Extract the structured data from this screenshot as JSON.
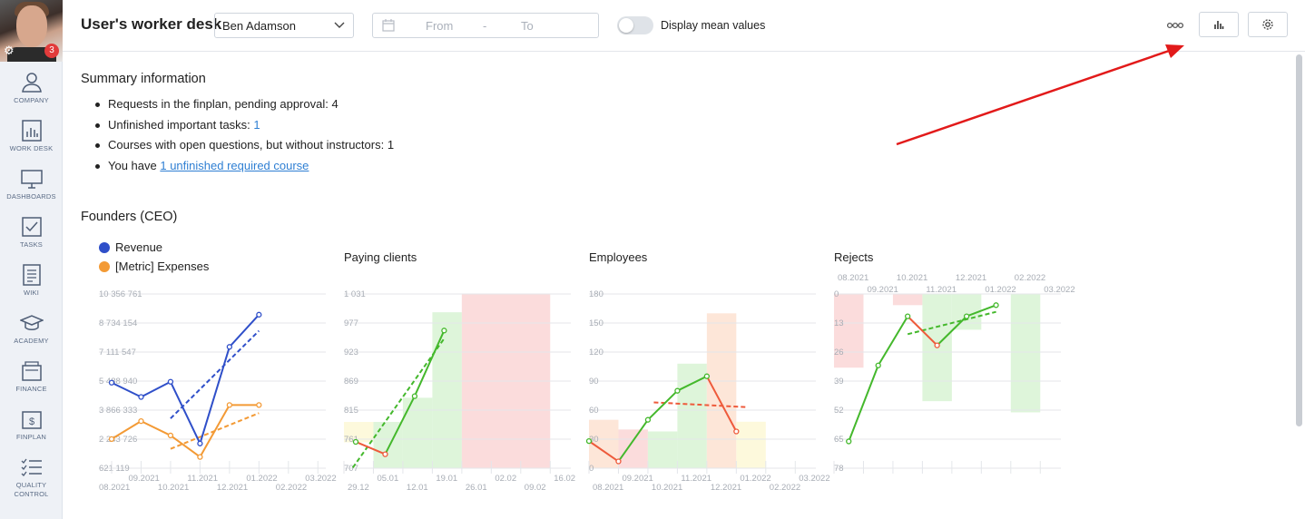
{
  "sidebar": {
    "badge_count": "3",
    "items": [
      {
        "label": "COMPANY",
        "icon": "users-icon"
      },
      {
        "label": "WORK DESK",
        "icon": "bar-chart-icon"
      },
      {
        "label": "DASHBOARDS",
        "icon": "monitor-icon"
      },
      {
        "label": "TASKS",
        "icon": "checkbox-icon"
      },
      {
        "label": "WIKI",
        "icon": "document-icon"
      },
      {
        "label": "ACADEMY",
        "icon": "graduation-cap-icon"
      },
      {
        "label": "FINANCE",
        "icon": "wallet-icon"
      },
      {
        "label": "FINPLAN",
        "icon": "dollar-doc-icon"
      },
      {
        "label": "QUALITY CONTROL",
        "icon": "checklist-icon"
      }
    ]
  },
  "header": {
    "title": "User's worker desk",
    "user_select": "Ben Adamson",
    "date_from_placeholder": "From",
    "date_separator": "-",
    "date_to_placeholder": "To",
    "toggle_label": "Display mean values",
    "toggle_on": false
  },
  "summary": {
    "title": "Summary information",
    "items": {
      "requests": "Requests in the finplan, pending approval: 4",
      "tasks_text": "Unfinished important tasks: ",
      "tasks_link": "1",
      "courses": "Courses with open questions, but without instructors: 1",
      "course_text": "You have ",
      "course_link": "1 unfinished required course"
    }
  },
  "section": {
    "title": "Founders (CEO)"
  },
  "colors": {
    "revenue": "#2f4fc9",
    "expenses": "#f39a35",
    "up": "#44b82c",
    "down": "#ee5a3b",
    "red_zone": "#fbdcdc",
    "green_zone": "#def5da",
    "orange_zone": "#fde6d8",
    "yellow_zone": "#fdf9dc",
    "annotation_arrow": "#e21a1a"
  },
  "chart_data": [
    {
      "type": "line",
      "title": "",
      "legend": [
        "Revenue",
        "[Metric] Expenses"
      ],
      "y_ticks": [
        "10 356 761",
        "8 734 154",
        "7 111 547",
        "5 488 940",
        "3 866 333",
        "2 243 726",
        "621 119"
      ],
      "x_ticks": [
        "08.2021",
        "09.2021",
        "10.2021",
        "11.2021",
        "12.2021",
        "01.2022",
        "02.2022",
        "03.2022"
      ],
      "ylim": [
        621119,
        10356761
      ],
      "series": [
        {
          "name": "Revenue",
          "x": [
            0,
            1,
            2,
            3,
            4,
            5
          ],
          "values": [
            5400000,
            4600000,
            5450000,
            2000000,
            7400000,
            9200000
          ]
        },
        {
          "name": "[Metric] Expenses",
          "x": [
            0,
            1,
            2,
            3,
            4,
            5
          ],
          "values": [
            2250000,
            3250000,
            2450000,
            1250000,
            4150000,
            4150000
          ]
        }
      ],
      "trend": [
        {
          "series": "Revenue",
          "from": [
            2,
            3400000
          ],
          "to": [
            5,
            8300000
          ]
        },
        {
          "series": "[Metric] Expenses",
          "from": [
            2,
            1700000
          ],
          "to": [
            5,
            3700000
          ]
        }
      ]
    },
    {
      "type": "line",
      "title": "Paying clients",
      "y_ticks": [
        "1 031",
        "977",
        "923",
        "869",
        "815",
        "761",
        "707"
      ],
      "x_ticks": [
        "29.12",
        "05.01",
        "12.01",
        "19.01",
        "26.01",
        "02.02",
        "09.02",
        "16.02"
      ],
      "ylim": [
        707,
        1031
      ],
      "series": [
        {
          "name": "",
          "x": [
            0.4,
            1.4,
            2.4,
            3.4
          ],
          "values": [
            756,
            733,
            841,
            963
          ]
        }
      ],
      "trend": [
        {
          "from": [
            0.3,
            708
          ],
          "to": [
            3.4,
            948
          ]
        }
      ],
      "bands": [
        {
          "x0": 0,
          "x1": 1,
          "y0": 755,
          "y1": 793,
          "color": "yellow_zone"
        },
        {
          "x0": 1,
          "x1": 2,
          "y0": 707,
          "y1": 793,
          "color": "green_zone"
        },
        {
          "x0": 2,
          "x1": 3,
          "y0": 707,
          "y1": 838,
          "color": "green_zone"
        },
        {
          "x0": 3,
          "x1": 4,
          "y0": 707,
          "y1": 997,
          "color": "green_zone"
        },
        {
          "x0": 4,
          "x1": 7,
          "y0": 707,
          "y1": 1031,
          "color": "red_zone"
        }
      ]
    },
    {
      "type": "line",
      "title": "Employees",
      "y_ticks": [
        "180",
        "150",
        "120",
        "90",
        "60",
        "30",
        "0"
      ],
      "x_ticks": [
        "08.2021",
        "09.2021",
        "10.2021",
        "11.2021",
        "12.2021",
        "01.2022",
        "02.2022",
        "03.2022"
      ],
      "ylim": [
        0,
        180
      ],
      "series": [
        {
          "name": "",
          "x": [
            0,
            1,
            2,
            3,
            4,
            5
          ],
          "values": [
            28,
            7,
            50,
            80,
            95,
            38
          ]
        }
      ],
      "trend": [
        {
          "from": [
            2.2,
            68
          ],
          "to": [
            5.4,
            63
          ]
        }
      ],
      "bands": [
        {
          "x0": 0,
          "x1": 1,
          "y0": 0,
          "y1": 50,
          "color": "orange_zone"
        },
        {
          "x0": 1,
          "x1": 2,
          "y0": 0,
          "y1": 40,
          "color": "red_zone"
        },
        {
          "x0": 2,
          "x1": 3,
          "y0": 0,
          "y1": 38,
          "color": "green_zone"
        },
        {
          "x0": 3,
          "x1": 4,
          "y0": 0,
          "y1": 108,
          "color": "green_zone"
        },
        {
          "x0": 4,
          "x1": 5,
          "y0": 0,
          "y1": 160,
          "color": "orange_zone"
        },
        {
          "x0": 5,
          "x1": 6,
          "y0": 0,
          "y1": 48,
          "color": "yellow_zone"
        }
      ]
    },
    {
      "type": "line",
      "title": "Rejects",
      "y_ticks": [
        "0",
        "13",
        "26",
        "39",
        "52",
        "65",
        "78"
      ],
      "x_ticks": [
        "08.2021",
        "09.2021",
        "10.2021",
        "11.2021",
        "12.2021",
        "01.2022",
        "02.2022",
        "03.2022"
      ],
      "x_axis_top": true,
      "inverted": true,
      "ylim": [
        0,
        78
      ],
      "series": [
        {
          "name": "",
          "x": [
            0.5,
            1.5,
            2.5,
            3.5,
            4.5,
            5.5
          ],
          "values": [
            66,
            32,
            10,
            23,
            10,
            5
          ]
        }
      ],
      "trend": [
        {
          "from": [
            2.5,
            18
          ],
          "to": [
            5.5,
            8
          ]
        }
      ],
      "bands": [
        {
          "x0": 0,
          "x1": 1,
          "y0": 0,
          "y1": 33,
          "color": "red_zone"
        },
        {
          "x0": 2,
          "x1": 3,
          "y0": 0,
          "y1": 5,
          "color": "red_zone"
        },
        {
          "x0": 3,
          "x1": 4,
          "y0": 0,
          "y1": 48,
          "color": "green_zone"
        },
        {
          "x0": 4,
          "x1": 5,
          "y0": 0,
          "y1": 16,
          "color": "green_zone"
        },
        {
          "x0": 6,
          "x1": 7,
          "y0": 0,
          "y1": 53,
          "color": "green_zone"
        }
      ]
    }
  ]
}
